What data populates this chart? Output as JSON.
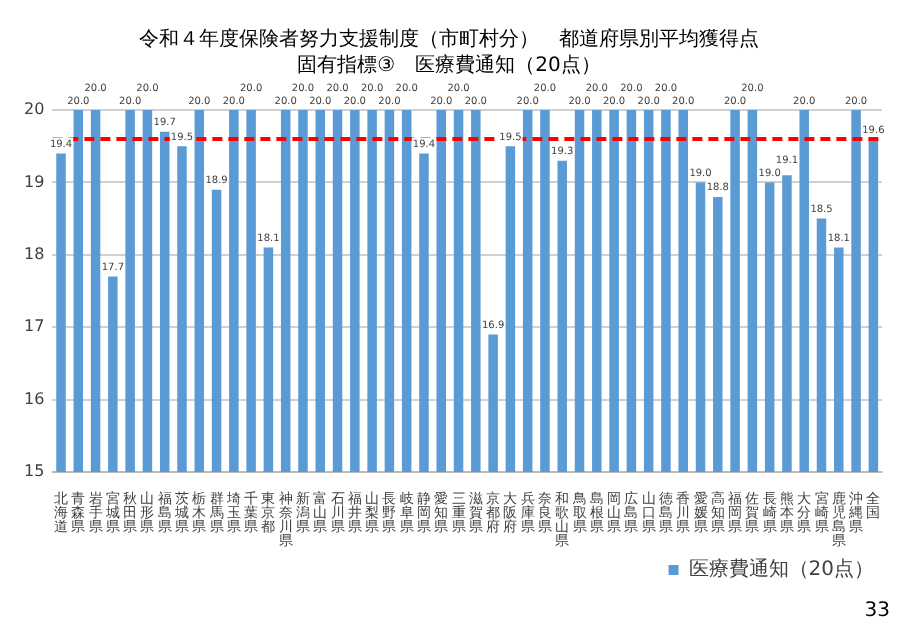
{
  "chart_data": {
    "type": "bar",
    "title": "令和４年度保険者努力支援制度（市町村分）　都道府県別平均獲得点",
    "subtitle": "固有指標③　医療費通知（20点）",
    "categories": [
      "北海道",
      "青森県",
      "岩手県",
      "宮城県",
      "秋田県",
      "山形県",
      "福島県",
      "茨城県",
      "栃木県",
      "群馬県",
      "埼玉県",
      "千葉県",
      "東京都",
      "神奈川県",
      "新潟県",
      "富山県",
      "石川県",
      "福井県",
      "山梨県",
      "長野県",
      "岐阜県",
      "静岡県",
      "愛知県",
      "三重県",
      "滋賀県",
      "京都府",
      "大阪府",
      "兵庫県",
      "奈良県",
      "和歌山県",
      "鳥取県",
      "島根県",
      "岡山県",
      "広島県",
      "山口県",
      "徳島県",
      "香川県",
      "愛媛県",
      "高知県",
      "福岡県",
      "佐賀県",
      "長崎県",
      "熊本県",
      "大分県",
      "宮崎県",
      "鹿児島県",
      "沖縄県",
      "全国"
    ],
    "series": [
      {
        "name": "医療費通知（20点）",
        "color": "#5b9bd5",
        "values": [
          19.4,
          20,
          20,
          17.7,
          20,
          20,
          19.7,
          19.5,
          20,
          18.9,
          20,
          20,
          18.1,
          20,
          20,
          20,
          20,
          20,
          20,
          20,
          20,
          19.4,
          20,
          20,
          20,
          16.9,
          19.5,
          20,
          20,
          19.3,
          20,
          20,
          20,
          20,
          20,
          20,
          20,
          19.0,
          18.8,
          20,
          20,
          19.0,
          19.1,
          20,
          18.5,
          18.1,
          20,
          19.6
        ],
        "value_labels": [
          "19.4",
          "20.0",
          "20.0",
          "17.7",
          "20.0",
          "20.0",
          "19.7",
          "19.5",
          "20.0",
          "18.9",
          "20.0",
          "20.0",
          "18.1",
          "20.0",
          "20.0",
          "20.0",
          "20.0",
          "20.0",
          "20.0",
          "20.0",
          "20.0",
          "19.4",
          "20.0",
          "20.0",
          "20.0",
          "16.9",
          "19.5",
          "20.0",
          "20.0",
          "19.3",
          "20.0",
          "20.0",
          "20.0",
          "20.0",
          "20.0",
          "20.0",
          "20.0",
          "19.0",
          "18.8",
          "20.0",
          "20.0",
          "19.0",
          "19.1",
          "20.0",
          "18.5",
          "18.1",
          "20.0",
          "19.6"
        ]
      }
    ],
    "ylim": [
      15,
      20
    ],
    "yticks": [
      15,
      16,
      17,
      18,
      19,
      20
    ],
    "grid": "y",
    "legend": "bottom right",
    "ref_lines": [
      {
        "axis": "y",
        "value": 19.6,
        "color": "#ff0000",
        "line_style": "dashed"
      }
    ],
    "annotations": [
      "33"
    ]
  }
}
